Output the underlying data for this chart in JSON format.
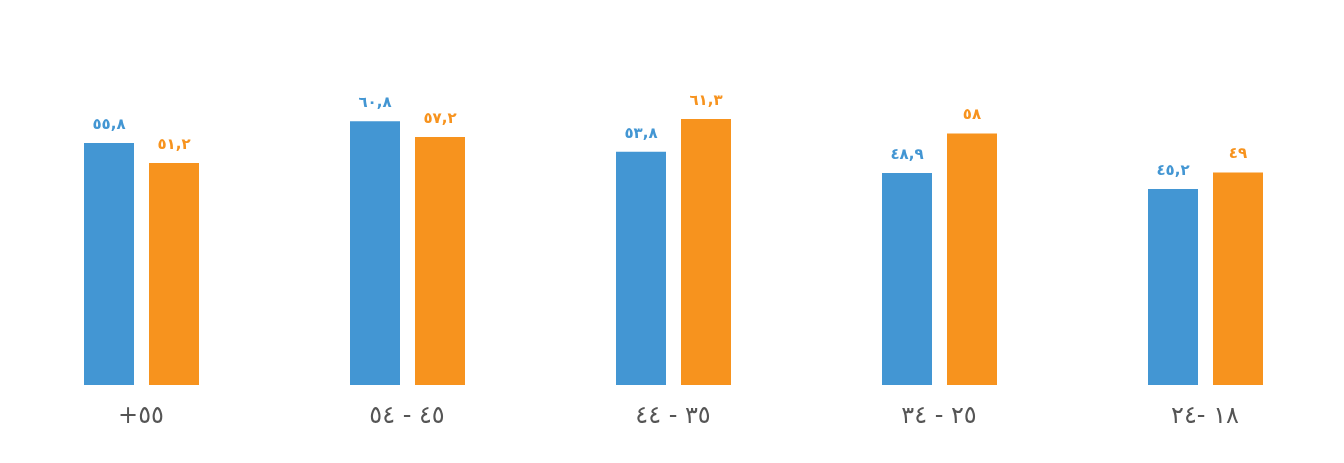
{
  "chart_data": {
    "type": "bar",
    "categories": [
      "+٥٥",
      "٥٤ - ٤٥",
      "٤٤ - ٣٥",
      "٣٤ - ٢٥",
      "٢٤- ١٨"
    ],
    "series": [
      {
        "color": "#4396d3",
        "values": [
          55.8,
          60.8,
          53.8,
          48.9,
          45.2
        ],
        "value_labels": [
          "٥٥,٨",
          "٦٠,٨",
          "٥٣,٨",
          "٤٨,٩",
          "٤٥,٢"
        ]
      },
      {
        "color": "#f7931e",
        "values": [
          51.2,
          57.2,
          61.3,
          58,
          49
        ],
        "value_labels": [
          "٥١,٢",
          "٥٧,٢",
          "٦١,٣",
          "٥٨",
          "٤٩"
        ]
      }
    ],
    "grid": false,
    "legend": false
  }
}
